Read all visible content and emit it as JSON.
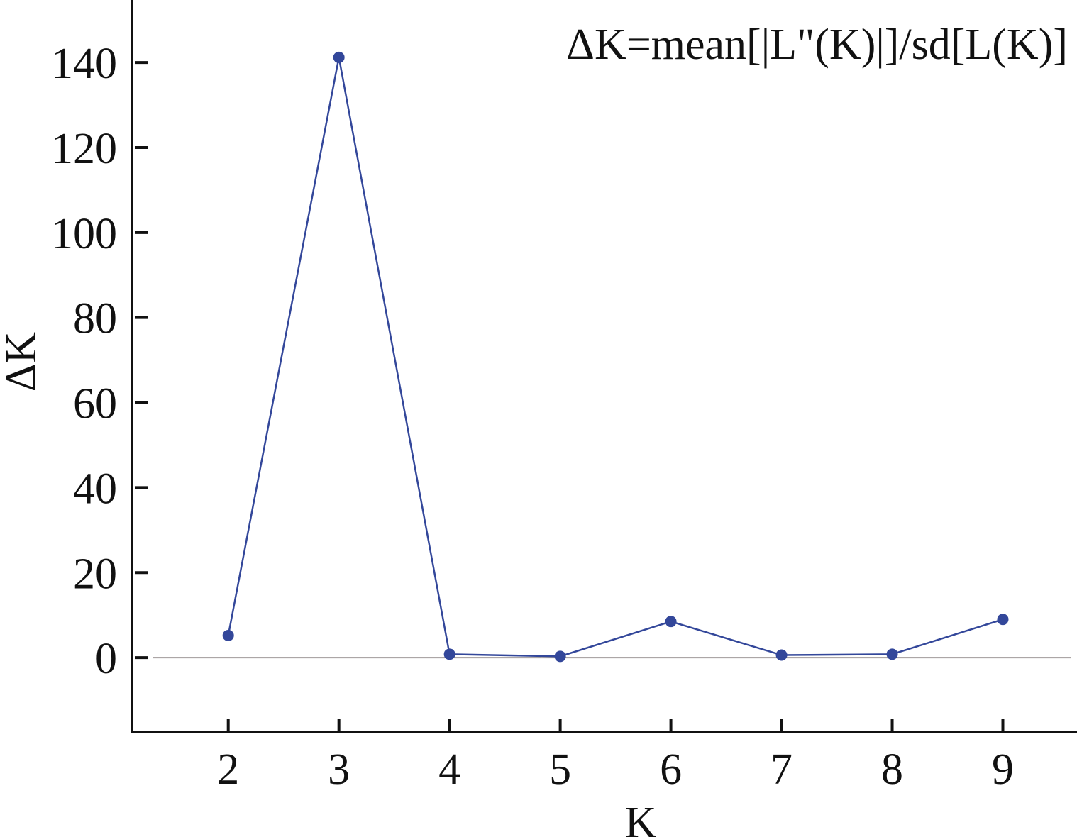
{
  "chart_data": {
    "type": "line",
    "title": "",
    "annotation": "ΔK=mean[|L\"(K)|]/sd[L(K)]",
    "xlabel": "K",
    "ylabel": "ΔK",
    "x": [
      2,
      3,
      4,
      5,
      6,
      7,
      8,
      9
    ],
    "series": [
      {
        "values": [
          5.2,
          141.2,
          0.8,
          0.3,
          8.5,
          0.6,
          0.8,
          9.0
        ],
        "color": "#33479a"
      }
    ],
    "xlim": [
      1.13,
      9.67
    ],
    "ylim": [
      -17.5,
      154.7
    ],
    "xticks": [
      "2",
      "3",
      "4",
      "5",
      "6",
      "7",
      "8",
      "9"
    ],
    "yticks": [
      "0",
      "20",
      "40",
      "60",
      "80",
      "100",
      "120",
      "140"
    ],
    "zero_line_color": "#a09a9a",
    "grid": false,
    "legend": "none"
  }
}
